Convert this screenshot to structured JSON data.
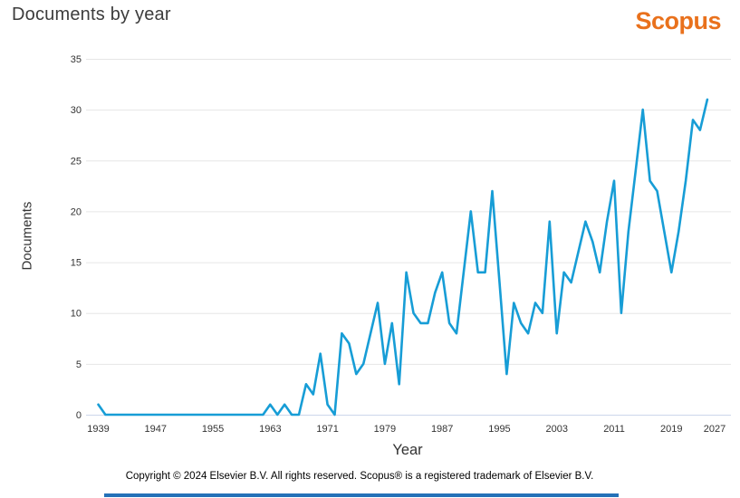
{
  "header": {
    "title": "Documents by year",
    "brand": "Scopus"
  },
  "chart_data": {
    "type": "line",
    "title": "Documents by year",
    "xlabel": "Year",
    "ylabel": "Documents",
    "xlim": [
      1939,
      2027
    ],
    "ylim": [
      0,
      35
    ],
    "grid": true,
    "legend": "none",
    "line_color": "#179dd6",
    "grid_color": "#e6e6e6",
    "axis_line_color": "#ccd6eb",
    "tick_label_color": "#333333",
    "y_ticks": [
      0,
      5,
      10,
      15,
      20,
      25,
      30,
      35
    ],
    "x_tick_labels": [
      1939,
      1947,
      1955,
      1963,
      1971,
      1979,
      1987,
      1995,
      2003,
      2011,
      2019,
      2027
    ],
    "series": [
      {
        "name": "Documents",
        "x": [
          1939,
          1940,
          1941,
          1942,
          1943,
          1944,
          1945,
          1946,
          1947,
          1948,
          1949,
          1950,
          1951,
          1952,
          1953,
          1954,
          1955,
          1956,
          1957,
          1958,
          1959,
          1960,
          1961,
          1962,
          1963,
          1964,
          1965,
          1966,
          1967,
          1968,
          1969,
          1970,
          1971,
          1972,
          1973,
          1974,
          1975,
          1976,
          1977,
          1978,
          1979,
          1980,
          1981,
          1982,
          1983,
          1984,
          1985,
          1986,
          1987,
          1988,
          1989,
          1990,
          1991,
          1992,
          1993,
          1994,
          1995,
          1996,
          1997,
          1998,
          1999,
          2000,
          2001,
          2002,
          2003,
          2004,
          2005,
          2006,
          2007,
          2008,
          2009,
          2010,
          2011,
          2012,
          2013,
          2014,
          2015,
          2016,
          2017,
          2018,
          2019,
          2020,
          2021,
          2022,
          2023,
          2024
        ],
        "values": [
          1,
          0,
          0,
          0,
          0,
          0,
          0,
          0,
          0,
          0,
          0,
          0,
          0,
          0,
          0,
          0,
          0,
          0,
          0,
          0,
          0,
          0,
          0,
          0,
          1,
          0,
          1,
          0,
          0,
          3,
          2,
          6,
          1,
          0,
          8,
          7,
          4,
          5,
          8,
          11,
          5,
          9,
          3,
          14,
          10,
          9,
          9,
          12,
          14,
          9,
          8,
          14,
          20,
          14,
          14,
          22,
          13,
          4,
          11,
          9,
          8,
          11,
          10,
          19,
          8,
          14,
          13,
          16,
          19,
          17,
          14,
          19,
          23,
          10,
          18,
          24,
          30,
          23,
          22,
          18,
          14,
          18,
          23,
          29,
          28,
          31
        ]
      }
    ]
  },
  "footer": {
    "copyright": "Copyright © 2024 Elsevier B.V. All rights reserved. Scopus® is a registered trademark of Elsevier B.V."
  },
  "colors": {
    "brand_orange": "#e9711c",
    "title_gray": "#3c3c3c",
    "bottom_divider_blue": "#2471b8"
  }
}
